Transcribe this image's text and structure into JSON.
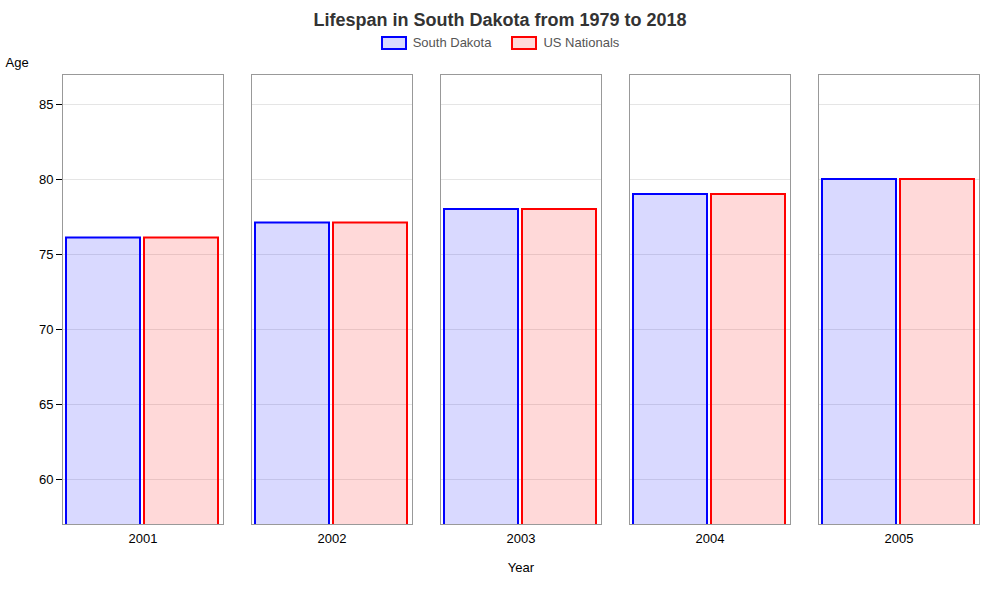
{
  "chart_data": {
    "type": "bar",
    "title": "Lifespan in South Dakota from 1979 to 2018",
    "x_label": "Year",
    "y_label": "Age",
    "categories": [
      "2001",
      "2002",
      "2003",
      "2004",
      "2005"
    ],
    "series": [
      {
        "name": "South Dakota",
        "color": "#0000ff",
        "values": [
          76.1,
          77.1,
          78.0,
          79.0,
          80.0
        ]
      },
      {
        "name": "US Nationals",
        "color": "#ff0000",
        "values": [
          76.1,
          77.1,
          78.0,
          79.0,
          80.0
        ]
      }
    ],
    "ylim": [
      57,
      87
    ],
    "yticks": [
      60,
      65,
      70,
      75,
      80,
      85
    ],
    "grid": true,
    "legend": "top"
  }
}
